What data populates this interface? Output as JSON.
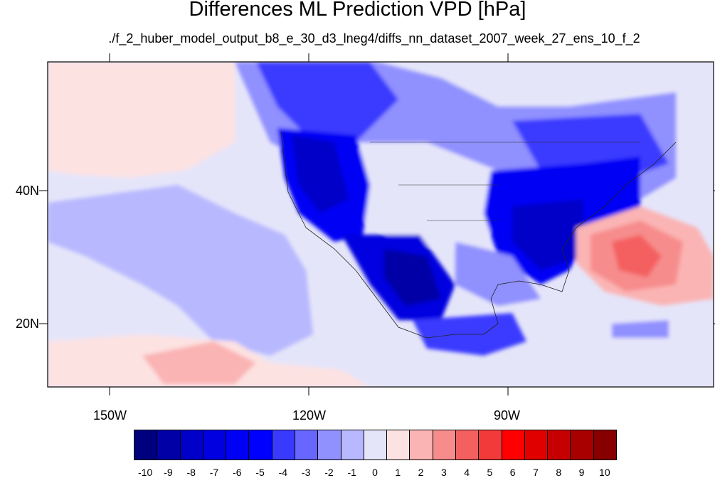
{
  "title": "Differences ML Prediction VPD [hPa]",
  "subtitle": "./f_2_huber_model_output_b8_e_30_d3_lneg4/diffs_nn_dataset_2007_week_27_ens_10_f_2",
  "lat_labels": [
    "40N",
    "20N"
  ],
  "lon_labels": [
    "150W",
    "120W",
    "90W"
  ],
  "colorbar": {
    "labels": [
      "-10",
      "-9",
      "-8",
      "-7",
      "-6",
      "-5",
      "-4",
      "-3",
      "-2",
      "-1",
      "0",
      "1",
      "2",
      "3",
      "4",
      "5",
      "6",
      "7",
      "8",
      "9",
      "10"
    ],
    "colors": [
      "#00007f",
      "#0000a6",
      "#0000c8",
      "#0000e0",
      "#0000f5",
      "#0000ff",
      "#3a3aff",
      "#6767ff",
      "#9090ff",
      "#b8b8ff",
      "#e5e5fa",
      "#fde2e2",
      "#fbb4b4",
      "#f78c8c",
      "#f46060",
      "#f23a3a",
      "#ff0000",
      "#e00000",
      "#c60000",
      "#a80000",
      "#870000"
    ]
  }
}
